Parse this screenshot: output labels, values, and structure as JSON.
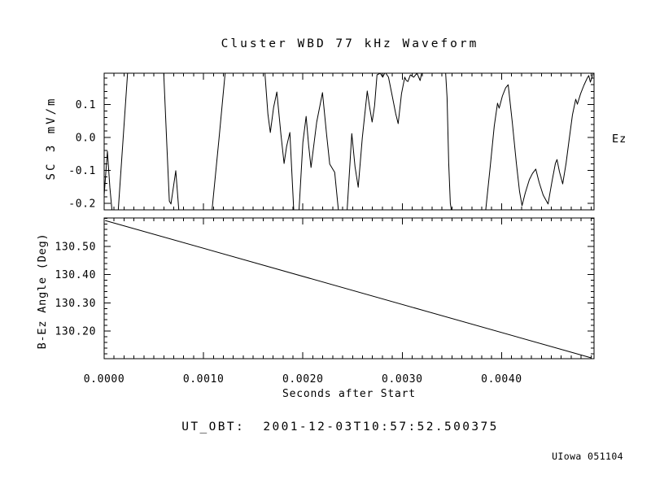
{
  "page": {
    "title": "Cluster WBD 77 kHz Waveform",
    "ylabel_waveform": "SC 3 mV/m",
    "ylabel_angle": "B-Ez Angle (Deg)",
    "right_label": "Ez",
    "xlabel": "Seconds after Start",
    "ut_obt": "UT_OBT:  2001-12-03T10:57:52.500375",
    "credit": "UIowa 051104"
  },
  "colors": {
    "foreground": "#000000",
    "background": "#ffffff"
  },
  "chart_data": [
    {
      "type": "line",
      "panel": "waveform",
      "title": "Cluster WBD 77 kHz Waveform",
      "ylabel": "SC 3 mV/m",
      "right_label": "Ez",
      "xlabel": "",
      "xlim": [
        0.0,
        0.00493
      ],
      "ylim": [
        -0.2197,
        0.1951
      ],
      "grid": false,
      "x_minor_step": 0.0001,
      "y_minor_step": 0.02,
      "xticks": [
        {
          "value": 0.0,
          "label": ""
        },
        {
          "value": 0.001,
          "label": ""
        },
        {
          "value": 0.002,
          "label": ""
        },
        {
          "value": 0.003,
          "label": ""
        },
        {
          "value": 0.004,
          "label": ""
        }
      ],
      "yticks": [
        {
          "value": 0.1,
          "label": "0.1"
        },
        {
          "value": 0.0,
          "label": "0.0"
        },
        {
          "value": -0.1,
          "label": "-0.1"
        },
        {
          "value": -0.2,
          "label": "-0.2"
        }
      ],
      "series": [
        {
          "name": "Ez",
          "points": [
            [
              0.0,
              -0.175
            ],
            [
              3.3e-05,
              -0.042
            ],
            [
              5.7e-05,
              -0.151
            ],
            [
              8.2e-05,
              -0.232
            ],
            [
              0.000139,
              -0.232
            ],
            [
              0.000238,
              0.207
            ],
            [
              0.000598,
              0.207
            ],
            [
              0.000631,
              -0.027
            ],
            [
              0.000656,
              -0.193
            ],
            [
              0.000672,
              -0.202
            ],
            [
              0.000721,
              -0.101
            ],
            [
              0.000754,
              -0.232
            ],
            [
              0.001082,
              -0.232
            ],
            [
              0.001156,
              -0.002
            ],
            [
              0.001221,
              0.207
            ],
            [
              0.001615,
              0.207
            ],
            [
              0.001648,
              0.072
            ],
            [
              0.001672,
              0.015
            ],
            [
              0.001705,
              0.091
            ],
            [
              0.001738,
              0.138
            ],
            [
              0.001779,
              0.01
            ],
            [
              0.001811,
              -0.079
            ],
            [
              0.001836,
              -0.027
            ],
            [
              0.001869,
              0.015
            ],
            [
              0.00191,
              -0.232
            ],
            [
              0.001959,
              -0.232
            ],
            [
              0.002,
              -0.015
            ],
            [
              0.002033,
              0.064
            ],
            [
              0.002057,
              -0.022
            ],
            [
              0.002082,
              -0.091
            ],
            [
              0.002139,
              0.047
            ],
            [
              0.002197,
              0.136
            ],
            [
              0.002238,
              0.01
            ],
            [
              0.00227,
              -0.081
            ],
            [
              0.00232,
              -0.106
            ],
            [
              0.002361,
              -0.232
            ],
            [
              0.002443,
              -0.232
            ],
            [
              0.002492,
              0.012
            ],
            [
              0.002525,
              -0.089
            ],
            [
              0.002557,
              -0.151
            ],
            [
              0.002598,
              -0.002
            ],
            [
              0.002648,
              0.141
            ],
            [
              0.002672,
              0.091
            ],
            [
              0.002697,
              0.047
            ],
            [
              0.002721,
              0.096
            ],
            [
              0.002746,
              0.19
            ],
            [
              0.002779,
              0.195
            ],
            [
              0.002803,
              0.183
            ],
            [
              0.002828,
              0.198
            ],
            [
              0.002861,
              0.183
            ],
            [
              0.002902,
              0.121
            ],
            [
              0.002934,
              0.072
            ],
            [
              0.002959,
              0.042
            ],
            [
              0.002992,
              0.133
            ],
            [
              0.003025,
              0.183
            ],
            [
              0.003041,
              0.173
            ],
            [
              0.003057,
              0.17
            ],
            [
              0.003082,
              0.19
            ],
            [
              0.003115,
              0.183
            ],
            [
              0.003148,
              0.195
            ],
            [
              0.00318,
              0.173
            ],
            [
              0.003205,
              0.21
            ],
            [
              0.003434,
              0.21
            ],
            [
              0.003451,
              0.121
            ],
            [
              0.003467,
              -0.077
            ],
            [
              0.003484,
              -0.2
            ],
            [
              0.0035,
              -0.232
            ],
            [
              0.003836,
              -0.232
            ],
            [
              0.003885,
              -0.089
            ],
            [
              0.003926,
              0.035
            ],
            [
              0.003959,
              0.104
            ],
            [
              0.003975,
              0.089
            ],
            [
              0.004008,
              0.126
            ],
            [
              0.004041,
              0.151
            ],
            [
              0.004066,
              0.16
            ],
            [
              0.004107,
              0.047
            ],
            [
              0.004148,
              -0.077
            ],
            [
              0.00418,
              -0.163
            ],
            [
              0.004205,
              -0.207
            ],
            [
              0.004238,
              -0.168
            ],
            [
              0.004279,
              -0.128
            ],
            [
              0.004311,
              -0.109
            ],
            [
              0.004344,
              -0.096
            ],
            [
              0.004377,
              -0.136
            ],
            [
              0.004418,
              -0.175
            ],
            [
              0.004467,
              -0.202
            ],
            [
              0.004508,
              -0.131
            ],
            [
              0.004541,
              -0.079
            ],
            [
              0.004557,
              -0.067
            ],
            [
              0.004582,
              -0.104
            ],
            [
              0.004615,
              -0.141
            ],
            [
              0.004648,
              -0.079
            ],
            [
              0.00468,
              -0.005
            ],
            [
              0.004713,
              0.069
            ],
            [
              0.004746,
              0.116
            ],
            [
              0.004762,
              0.101
            ],
            [
              0.004795,
              0.133
            ],
            [
              0.004828,
              0.158
            ],
            [
              0.004861,
              0.18
            ],
            [
              0.004877,
              0.188
            ],
            [
              0.004893,
              0.168
            ],
            [
              0.00491,
              0.183
            ],
            [
              0.004926,
              0.2
            ]
          ]
        }
      ]
    },
    {
      "type": "line",
      "panel": "angle",
      "title": "",
      "ylabel": "B-Ez Angle (Deg)",
      "xlabel": "Seconds after Start",
      "xlim": [
        0.0,
        0.00493
      ],
      "ylim": [
        130.102,
        130.601
      ],
      "grid": false,
      "x_minor_step": 0.0001,
      "y_minor_step": 0.02,
      "xticks": [
        {
          "value": 0.0,
          "label": "0.0000"
        },
        {
          "value": 0.001,
          "label": "0.0010"
        },
        {
          "value": 0.002,
          "label": "0.0020"
        },
        {
          "value": 0.003,
          "label": "0.0030"
        },
        {
          "value": 0.004,
          "label": "0.0040"
        }
      ],
      "yticks": [
        {
          "value": 130.5,
          "label": "130.50"
        },
        {
          "value": 130.4,
          "label": "130.40"
        },
        {
          "value": 130.3,
          "label": "130.30"
        },
        {
          "value": 130.2,
          "label": "130.20"
        }
      ],
      "series": [
        {
          "name": "B-Ez Angle",
          "points": [
            [
              1e-05,
              130.592
            ],
            [
              0.004902,
              130.105
            ]
          ]
        }
      ]
    }
  ],
  "annotations": {
    "ut_obt": "UT_OBT:  2001-12-03T10:57:52.500375",
    "credit": "UIowa 051104"
  }
}
